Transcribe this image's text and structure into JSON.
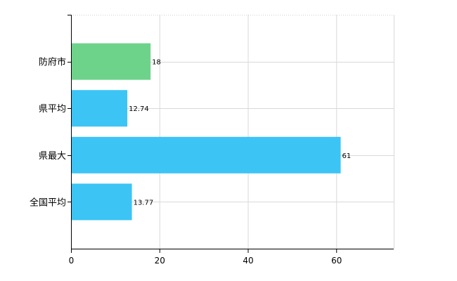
{
  "chart_data": {
    "type": "bar",
    "orientation": "horizontal",
    "categories": [
      "防府市",
      "県平均",
      "県最大",
      "全国平均"
    ],
    "values": [
      18,
      12.74,
      61,
      13.77
    ],
    "value_labels": [
      "18",
      "12.74",
      "61",
      "13.77"
    ],
    "bar_colors": [
      "#6dd38a",
      "#3cc4f5",
      "#3cc4f5",
      "#3cc4f5"
    ],
    "xlim": [
      0,
      73
    ],
    "xticks": [
      0,
      20,
      40,
      60
    ],
    "xtick_labels": [
      "0",
      "20",
      "40",
      "60"
    ],
    "title": "",
    "xlabel": "",
    "ylabel": "",
    "grid": true,
    "legend": "none"
  }
}
